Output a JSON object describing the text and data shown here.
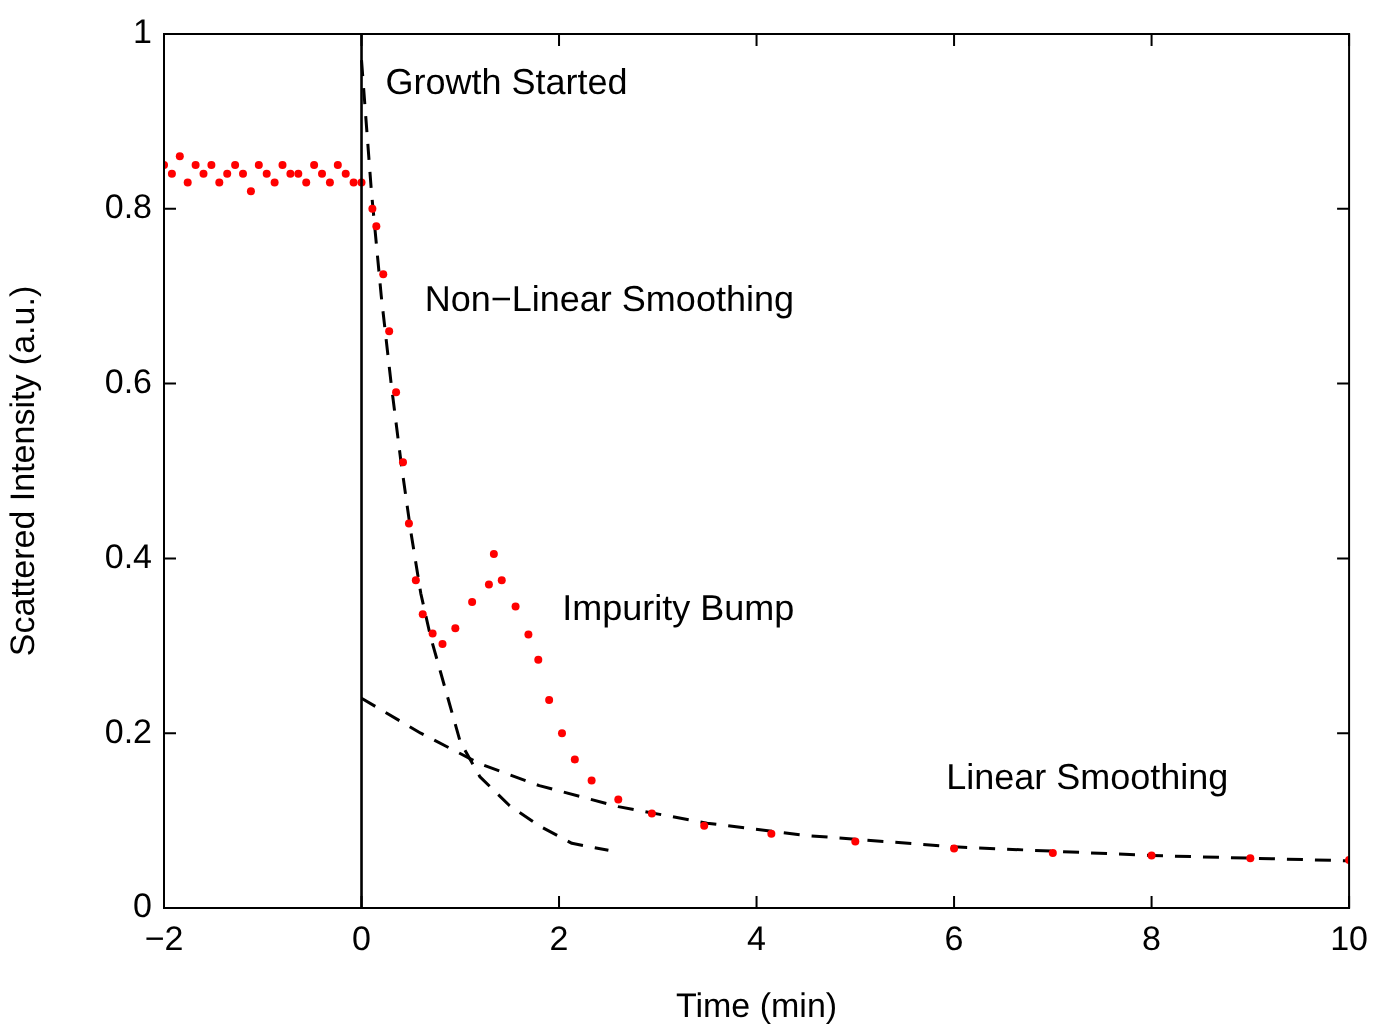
{
  "chart_data": {
    "type": "scatter",
    "xlabel": "Time (min)",
    "ylabel": "Scattered Intensity (a.u.)",
    "xlim": [
      -2,
      10
    ],
    "xticks": [
      -2,
      0,
      2,
      4,
      6,
      8,
      10
    ],
    "ylim": [
      0,
      1
    ],
    "yticks": [
      0,
      0.2,
      0.4,
      0.6,
      0.8,
      1
    ],
    "grid": false,
    "legend": false,
    "marker": "circle",
    "series": [
      {
        "color": "#ff0000",
        "x": [
          -2,
          -1.92,
          -1.84,
          -1.76,
          -1.68,
          -1.6,
          -1.52,
          -1.44,
          -1.36,
          -1.28,
          -1.2,
          -1.12,
          -1.04,
          -0.96,
          -0.88,
          -0.8,
          -0.72,
          -0.64,
          -0.56,
          -0.48,
          -0.4,
          -0.32,
          -0.24,
          -0.16,
          -0.08,
          0,
          0.11,
          0.15,
          0.22,
          0.28,
          0.35,
          0.42,
          0.48,
          0.55,
          0.62,
          0.72,
          0.82,
          0.95,
          1.12,
          1.29,
          1.34,
          1.42,
          1.56,
          1.69,
          1.79,
          1.9,
          2.03,
          2.16,
          2.33,
          2.6,
          2.94,
          3.47,
          4.15,
          5,
          6,
          7,
          8,
          9,
          10
        ],
        "values": [
          0.85,
          0.84,
          0.86,
          0.83,
          0.85,
          0.84,
          0.85,
          0.83,
          0.84,
          0.85,
          0.84,
          0.82,
          0.85,
          0.84,
          0.83,
          0.85,
          0.84,
          0.84,
          0.83,
          0.85,
          0.84,
          0.83,
          0.85,
          0.84,
          0.83,
          0.83,
          0.8,
          0.78,
          0.725,
          0.66,
          0.59,
          0.51,
          0.44,
          0.375,
          0.336,
          0.314,
          0.302,
          0.32,
          0.35,
          0.37,
          0.405,
          0.375,
          0.345,
          0.313,
          0.284,
          0.238,
          0.2,
          0.17,
          0.146,
          0.124,
          0.108,
          0.094,
          0.085,
          0.076,
          0.068,
          0.063,
          0.06,
          0.057,
          0.055
        ]
      },
      {
        "type": "line",
        "color": "#000000",
        "marker": "none",
        "line_style": "dashed",
        "x": [
          0,
          0.1,
          0.2,
          0.3,
          0.4,
          0.5,
          0.6,
          0.7,
          0.8,
          1,
          1.2,
          1.5,
          1.8,
          2.13,
          2.5
        ],
        "values": [
          0.97,
          0.82,
          0.7,
          0.6,
          0.51,
          0.43,
          0.36,
          0.31,
          0.27,
          0.19,
          0.15,
          0.117,
          0.094,
          0.074,
          0.066
        ]
      },
      {
        "type": "line",
        "color": "#000000",
        "marker": "none",
        "line_style": "dashed",
        "x": [
          0,
          0.6,
          1.2,
          1.8,
          2.6,
          3.5,
          4.5,
          6,
          8,
          10
        ],
        "values": [
          0.24,
          0.2,
          0.165,
          0.14,
          0.116,
          0.097,
          0.083,
          0.07,
          0.06,
          0.054
        ]
      }
    ],
    "ref_lines": [
      {
        "axis": "x",
        "value": 0,
        "label": "Growth Started",
        "color": "#000000",
        "line_style": "solid"
      }
    ],
    "annotations": [
      "Non−Linear Smoothing",
      "Impurity Bump",
      "Linear Smoothing"
    ]
  }
}
